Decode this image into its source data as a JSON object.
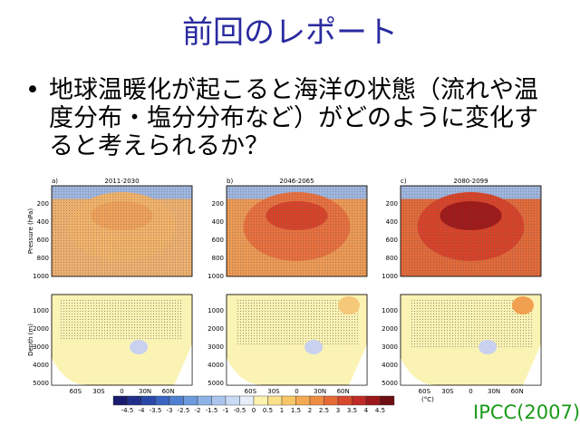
{
  "title": "前回のレポート",
  "bullet": "地球温暖化が起こると海洋の状態（流れや温度分布・塩分分布など）がどのように変化すると考えられるか？",
  "figure": {
    "panels": [
      {
        "label": "a)",
        "period": "2011-2030"
      },
      {
        "label": "b)",
        "period": "2046-2065"
      },
      {
        "label": "c)",
        "period": "2080-2099"
      }
    ],
    "atmosphere_axis_label": "Pressure (hPa)",
    "atmosphere_ticks": [
      "200",
      "400",
      "600",
      "800",
      "1000"
    ],
    "ocean_axis_label": "Depth (m)",
    "ocean_ticks": [
      "1000",
      "2000",
      "3000",
      "4000",
      "5000"
    ],
    "lat_ticks": [
      "60S",
      "30S",
      "0",
      "30N",
      "60N"
    ],
    "colorbar": {
      "labels": [
        -4.5,
        -4,
        -3.5,
        -3,
        -2.5,
        -2,
        -1.5,
        -1,
        -0.5,
        0,
        0.5,
        1,
        1.5,
        2,
        2.5,
        3,
        3.5,
        4,
        4.5
      ],
      "unit": "(°C)"
    }
  },
  "source": "IPCC(2007)"
}
